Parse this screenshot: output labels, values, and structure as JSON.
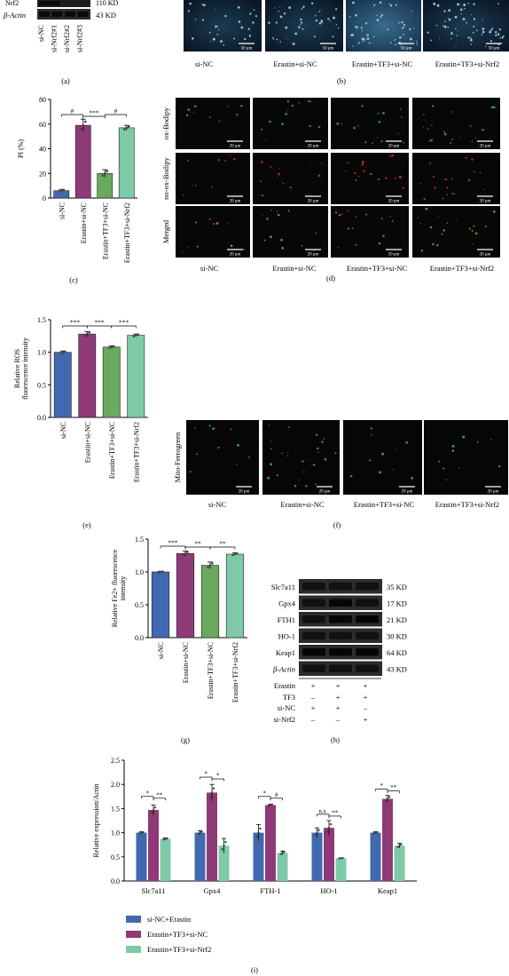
{
  "panels": {
    "a": {
      "label": "(a)",
      "blot_top_partial": "Nrf2",
      "blot_top_kd": "110 KD",
      "blot_actin": "β-Actin",
      "blot_actin_kd": "43 KD",
      "lanes": [
        "si-NC",
        "si-Nrf2#1",
        "si-Nrf2#2",
        "si-Nrf2#3"
      ]
    },
    "b": {
      "label": "(b)",
      "scale": "50 μm",
      "groups": [
        "si-NC",
        "Erastin+si-NC",
        "Erastin+TF3+si-NC",
        "Erastin+TF3+si-Nrf2"
      ]
    },
    "c": {
      "label": "(c)"
    },
    "d": {
      "label": "(d)",
      "scale": "20 μm",
      "rows": [
        "ox-Bodipy",
        "no-ox-Bodipy",
        "Merged"
      ],
      "groups": [
        "si-NC",
        "Erastin+si-NC",
        "Erastin+TF3+si-NC",
        "Erastin+TF3+si-Nrf2"
      ]
    },
    "e": {
      "label": "(e)"
    },
    "f": {
      "label": "(f)",
      "scale": "20 μm",
      "row": "Mito-Ferrogreen",
      "groups": [
        "si-NC",
        "Erastin+si-NC",
        "Erastin+TF3+si-NC",
        "Erastin+TF3+si-Nrf2"
      ]
    },
    "g": {
      "label": "(g)"
    },
    "h": {
      "label": "(h)",
      "proteins": [
        {
          "name": "Slc7a11",
          "kd": "35 KD"
        },
        {
          "name": "Gpx4",
          "kd": "17 KD"
        },
        {
          "name": "FTH1",
          "kd": "21 KD"
        },
        {
          "name": "HO-1",
          "kd": "30 KD"
        },
        {
          "name": "Keap1",
          "kd": "64 KD"
        },
        {
          "name": "β-Actin",
          "kd": "43 KD"
        }
      ],
      "treatments": [
        {
          "name": "Erastin",
          "signs": [
            "+",
            "+",
            "+"
          ]
        },
        {
          "name": "TF3",
          "signs": [
            "–",
            "+",
            "+"
          ]
        },
        {
          "name": "si-NC",
          "signs": [
            "+",
            "+",
            "–"
          ]
        },
        {
          "name": "si-Nrf2",
          "signs": [
            "–",
            "–",
            "+"
          ]
        }
      ]
    },
    "i": {
      "label": "(i)"
    }
  },
  "chart_data": [
    {
      "id": "c",
      "type": "bar",
      "ylabel": "PI (%)",
      "ylim": [
        0,
        80
      ],
      "yticks": [
        0,
        20,
        40,
        60,
        80
      ],
      "categories": [
        "si-NC",
        "Erastin+si-NC",
        "Erastin+TF3+si-NC",
        "Erastin+TF3+si-Nrf2"
      ],
      "values": [
        6,
        59,
        20,
        57
      ],
      "errors": [
        1,
        5,
        3,
        2
      ],
      "colors": [
        "#4169b0",
        "#8e3a77",
        "#6aaa5e",
        "#7fcaa6"
      ],
      "significance": [
        {
          "from": 0,
          "to": 1,
          "label": "#"
        },
        {
          "from": 1,
          "to": 2,
          "label": "***"
        },
        {
          "from": 2,
          "to": 3,
          "label": "#"
        }
      ]
    },
    {
      "id": "e",
      "type": "bar",
      "ylabel": "Relative ROS fluorescence intensity",
      "ylim": [
        0,
        1.5
      ],
      "yticks": [
        0.0,
        0.5,
        1.0,
        1.5
      ],
      "categories": [
        "si-NC",
        "Erastin+si-NC",
        "Erastin+TF3+si-NC",
        "Erastin+TF3+si-Nrf2"
      ],
      "values": [
        1.0,
        1.28,
        1.08,
        1.26
      ],
      "errors": [
        0.02,
        0.04,
        0.02,
        0.02
      ],
      "colors": [
        "#4169b0",
        "#8e3a77",
        "#6aaa5e",
        "#7fcaa6"
      ],
      "significance": [
        {
          "from": 0,
          "to": 1,
          "label": "***"
        },
        {
          "from": 1,
          "to": 2,
          "label": "***"
        },
        {
          "from": 2,
          "to": 3,
          "label": "***"
        }
      ]
    },
    {
      "id": "g",
      "type": "bar",
      "ylabel": "Relative Fe2+ fluorescence intensity",
      "ylim": [
        0,
        1.5
      ],
      "yticks": [
        0.0,
        0.5,
        1.0,
        1.5
      ],
      "categories": [
        "si-NC",
        "Erastin+si-NC",
        "Erastin+TF3+si-NC",
        "Erastin+TF3+si-Nrf2"
      ],
      "values": [
        1.0,
        1.28,
        1.1,
        1.27
      ],
      "errors": [
        0.01,
        0.04,
        0.05,
        0.02
      ],
      "colors": [
        "#4169b0",
        "#8e3a77",
        "#6aaa5e",
        "#7fcaa6"
      ],
      "significance": [
        {
          "from": 0,
          "to": 1,
          "label": "***"
        },
        {
          "from": 1,
          "to": 2,
          "label": "**"
        },
        {
          "from": 2,
          "to": 3,
          "label": "**"
        }
      ]
    },
    {
      "id": "i",
      "type": "bar",
      "ylabel": "Relative expression/Actin",
      "ylim": [
        0,
        2.5
      ],
      "yticks": [
        0.0,
        0.5,
        1.0,
        1.5,
        2.0,
        2.5
      ],
      "categories": [
        "Slc7a11",
        "Gpx4",
        "FTH-1",
        "HO-1",
        "Keap1"
      ],
      "series": [
        {
          "name": "si-NC+Erastin",
          "color": "#4169b0",
          "values": [
            1.0,
            1.0,
            1.0,
            1.0,
            1.0
          ],
          "errors": [
            0.02,
            0.04,
            0.17,
            0.1,
            0.02
          ]
        },
        {
          "name": "Erastin+TF3+si-NC",
          "color": "#8e3a77",
          "values": [
            1.47,
            1.83,
            1.57,
            1.1,
            1.7
          ],
          "errors": [
            0.1,
            0.17,
            0.02,
            0.15,
            0.07
          ]
        },
        {
          "name": "Erastin+TF3+si-Nrf2",
          "color": "#7fcaa6",
          "values": [
            0.87,
            0.73,
            0.58,
            0.47,
            0.73
          ],
          "errors": [
            0.02,
            0.15,
            0.04,
            0.01,
            0.05
          ]
        }
      ],
      "significance": [
        {
          "cat": 0,
          "from": 0,
          "to": 1,
          "label": "*"
        },
        {
          "cat": 0,
          "from": 1,
          "to": 2,
          "label": "**"
        },
        {
          "cat": 1,
          "from": 0,
          "to": 1,
          "label": "*"
        },
        {
          "cat": 1,
          "from": 1,
          "to": 2,
          "label": "*"
        },
        {
          "cat": 2,
          "from": 0,
          "to": 1,
          "label": "*"
        },
        {
          "cat": 2,
          "from": 1,
          "to": 2,
          "label": "#"
        },
        {
          "cat": 3,
          "from": 0,
          "to": 1,
          "label": "n.s."
        },
        {
          "cat": 3,
          "from": 1,
          "to": 2,
          "label": "**"
        },
        {
          "cat": 4,
          "from": 0,
          "to": 1,
          "label": "*"
        },
        {
          "cat": 4,
          "from": 1,
          "to": 2,
          "label": "**"
        }
      ],
      "legend": "bottom-left"
    }
  ]
}
